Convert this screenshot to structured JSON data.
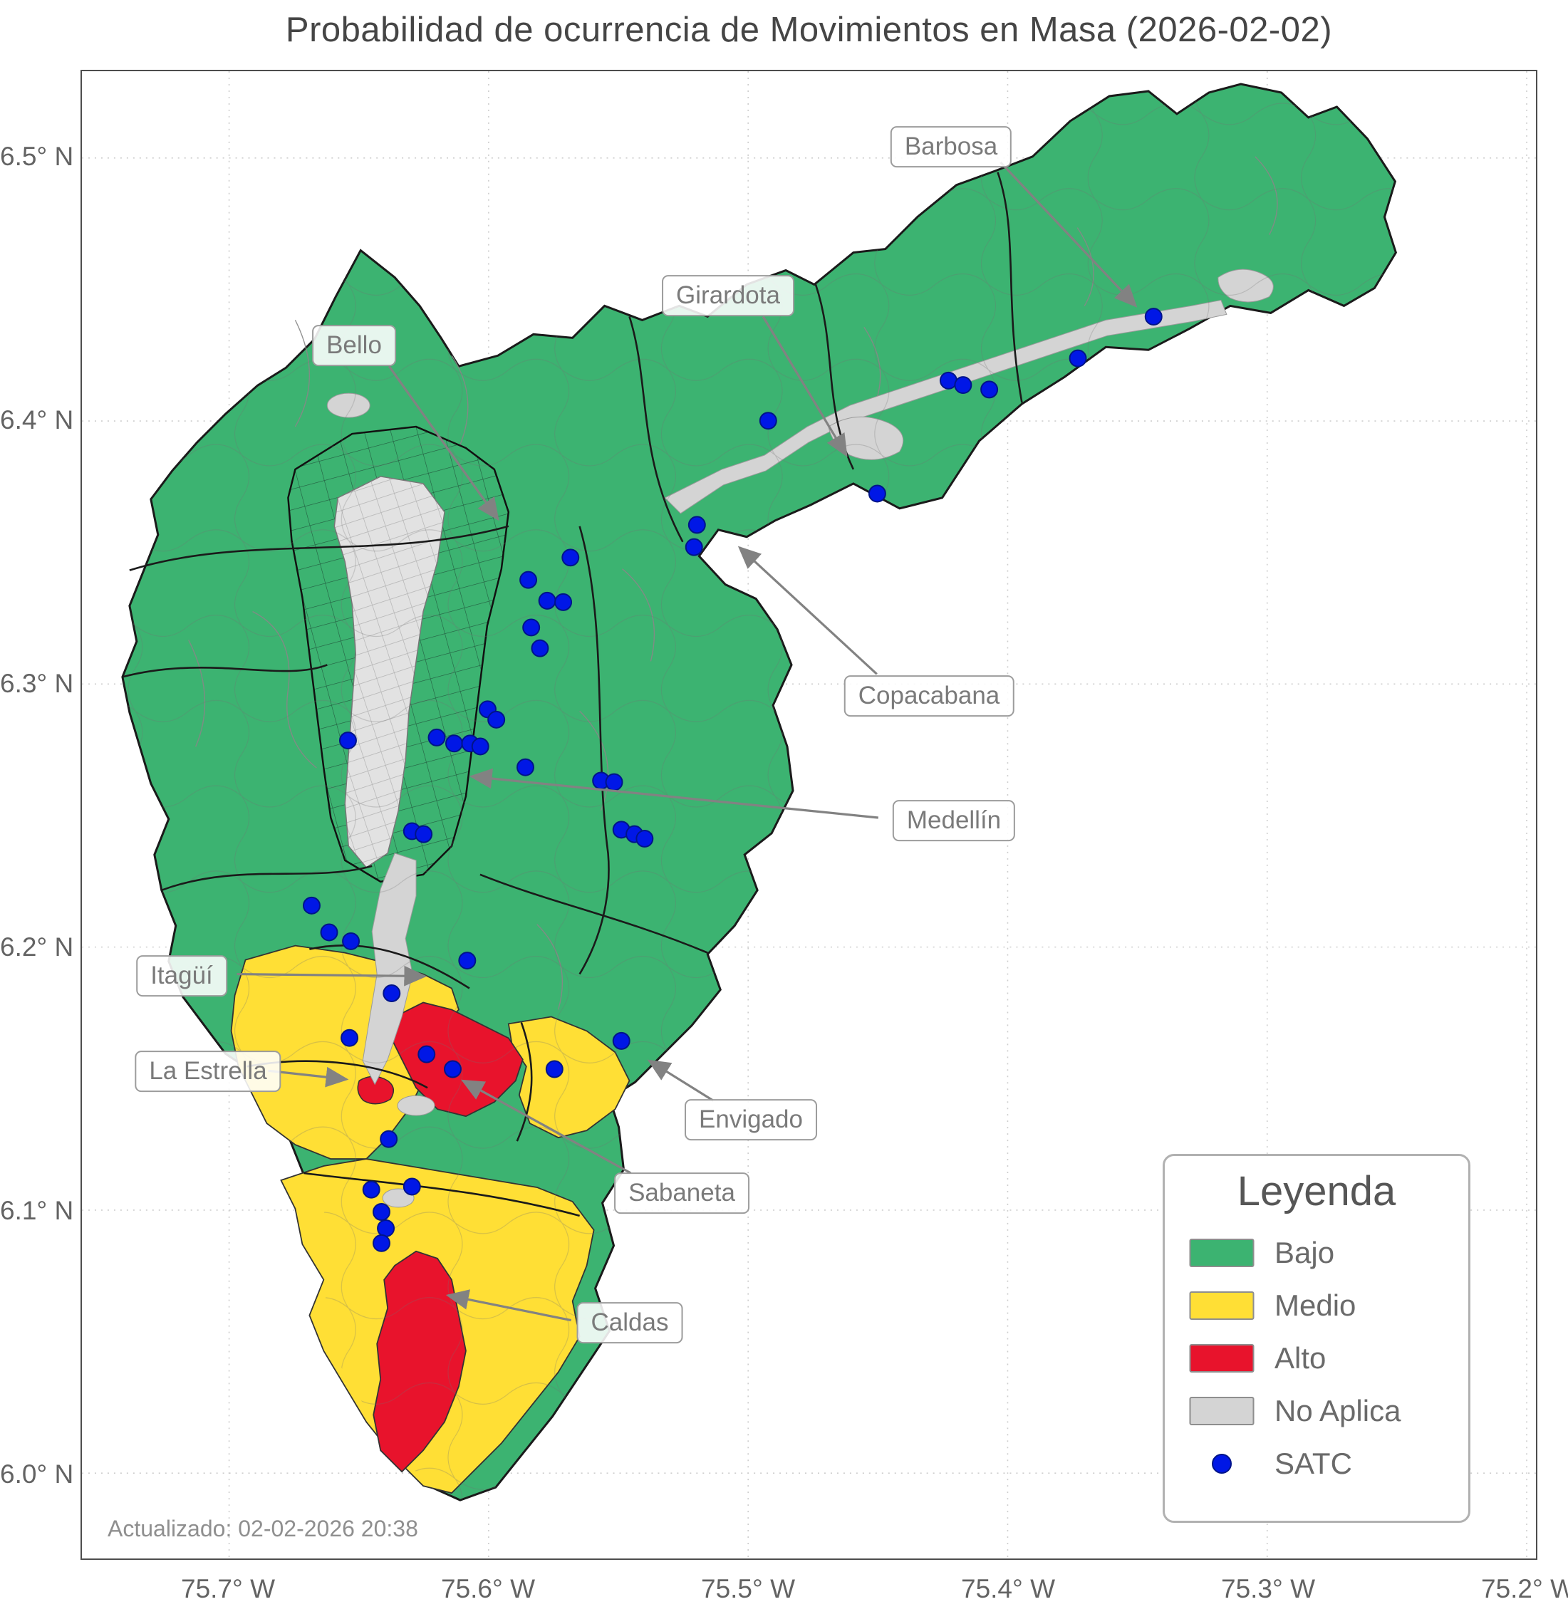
{
  "title": "Probabilidad de ocurrencia de Movimientos en Masa (2026-02-02)",
  "updated_text": "Actualizado: 02-02-2026 20:38",
  "colors": {
    "bajo": "#3cb371",
    "medio": "#ffdf35",
    "alto": "#e8132c",
    "no_aplica": "#d4d4d4",
    "satc": "#0017e6"
  },
  "axes": {
    "x_ticks": [
      "75.7° W",
      "75.6° W",
      "75.5° W",
      "75.4° W",
      "75.3° W",
      "75.2° W"
    ],
    "y_ticks": [
      "6.5° N",
      "6.4° N",
      "6.3° N",
      "6.2° N",
      "6.1° N",
      "6.0° N"
    ]
  },
  "legend": {
    "title": "Leyenda",
    "items": [
      {
        "label": "Bajo"
      },
      {
        "label": "Medio"
      },
      {
        "label": "Alto"
      },
      {
        "label": "No Aplica"
      },
      {
        "label": "SATC"
      }
    ]
  },
  "annotations": [
    {
      "label": "Barbosa"
    },
    {
      "label": "Girardota"
    },
    {
      "label": "Bello"
    },
    {
      "label": "Copacabana"
    },
    {
      "label": "Medellín"
    },
    {
      "label": "Itagüí"
    },
    {
      "label": "La Estrella"
    },
    {
      "label": "Envigado"
    },
    {
      "label": "Sabaneta"
    },
    {
      "label": "Caldas"
    }
  ],
  "chart_data": {
    "type": "choropleth-map",
    "title": "Probabilidad de ocurrencia de Movimientos en Masa (2026-02-02)",
    "risk_levels": [
      "Bajo",
      "Medio",
      "Alto",
      "No Aplica"
    ],
    "labeled_municipalities": [
      "Barbosa",
      "Girardota",
      "Bello",
      "Copacabana",
      "Medellín",
      "Itagüí",
      "La Estrella",
      "Envigado",
      "Sabaneta",
      "Caldas"
    ],
    "x_axis_ticks": [
      "75.7° W",
      "75.6° W",
      "75.5° W",
      "75.4° W",
      "75.3° W",
      "75.2° W"
    ],
    "y_axis_ticks": [
      "6.5° N",
      "6.4° N",
      "6.3° N",
      "6.2° N",
      "6.1° N",
      "6.0° N"
    ],
    "satc_points_units": "fraction of plot area, x rightward, y downward",
    "satc_points": [
      [
        0.737,
        0.165
      ],
      [
        0.685,
        0.193
      ],
      [
        0.596,
        0.208
      ],
      [
        0.606,
        0.211
      ],
      [
        0.624,
        0.214
      ],
      [
        0.472,
        0.235
      ],
      [
        0.547,
        0.284
      ],
      [
        0.423,
        0.305
      ],
      [
        0.421,
        0.32
      ],
      [
        0.336,
        0.327
      ],
      [
        0.307,
        0.342
      ],
      [
        0.32,
        0.356
      ],
      [
        0.331,
        0.357
      ],
      [
        0.309,
        0.374
      ],
      [
        0.315,
        0.388
      ],
      [
        0.279,
        0.429
      ],
      [
        0.285,
        0.436
      ],
      [
        0.244,
        0.448
      ],
      [
        0.183,
        0.45
      ],
      [
        0.256,
        0.452
      ],
      [
        0.267,
        0.452
      ],
      [
        0.274,
        0.454
      ],
      [
        0.305,
        0.468
      ],
      [
        0.357,
        0.477
      ],
      [
        0.366,
        0.478
      ],
      [
        0.227,
        0.511
      ],
      [
        0.235,
        0.513
      ],
      [
        0.371,
        0.51
      ],
      [
        0.38,
        0.513
      ],
      [
        0.387,
        0.516
      ],
      [
        0.158,
        0.561
      ],
      [
        0.17,
        0.579
      ],
      [
        0.185,
        0.585
      ],
      [
        0.265,
        0.598
      ],
      [
        0.213,
        0.62
      ],
      [
        0.184,
        0.65
      ],
      [
        0.237,
        0.661
      ],
      [
        0.255,
        0.671
      ],
      [
        0.325,
        0.671
      ],
      [
        0.371,
        0.652
      ],
      [
        0.211,
        0.718
      ],
      [
        0.199,
        0.752
      ],
      [
        0.227,
        0.75
      ],
      [
        0.206,
        0.767
      ],
      [
        0.209,
        0.778
      ],
      [
        0.206,
        0.788
      ]
    ]
  }
}
